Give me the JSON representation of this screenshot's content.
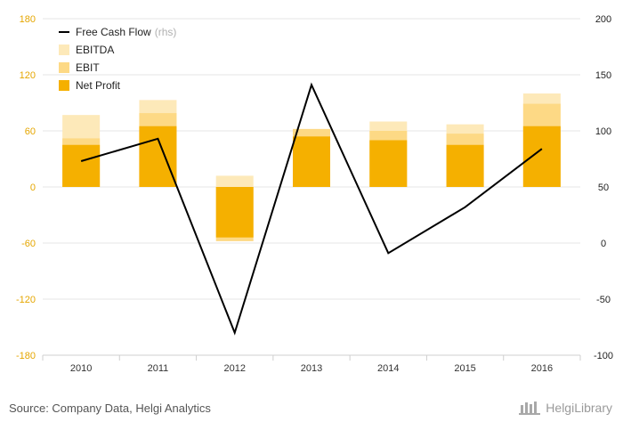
{
  "chart_data": {
    "type": "bar",
    "categories": [
      "2010",
      "2011",
      "2012",
      "2013",
      "2014",
      "2015",
      "2016"
    ],
    "series": [
      {
        "name": "EBITDA",
        "kind": "bar",
        "axis": "left",
        "color": "#fde9b9",
        "values": [
          77,
          93,
          12,
          62,
          70,
          67,
          100
        ]
      },
      {
        "name": "EBIT",
        "kind": "bar",
        "axis": "left",
        "color": "#fdd985",
        "values": [
          52,
          79,
          -58,
          62,
          60,
          57,
          89
        ]
      },
      {
        "name": "Net Profit",
        "kind": "bar",
        "axis": "left",
        "color": "#f5b000",
        "values": [
          45,
          65,
          -54,
          54,
          50,
          45,
          65
        ]
      },
      {
        "name": "Free Cash Flow",
        "kind": "line",
        "axis": "right",
        "color": "#000000",
        "values": [
          73,
          93,
          -80,
          141,
          -9,
          32,
          84
        ]
      }
    ],
    "left_axis": {
      "ylim": [
        -180,
        180
      ],
      "ticks": [
        "180",
        "120",
        "60",
        "0",
        "-60",
        "-120",
        "-180"
      ]
    },
    "right_axis": {
      "ylim": [
        -100,
        200
      ],
      "ticks": [
        "200",
        "150",
        "100",
        "50",
        "0",
        "-50",
        "-100"
      ]
    },
    "legend": [
      {
        "label": "Free Cash Flow",
        "suffix": "(rhs)",
        "symbol": "line",
        "color": "#000000"
      },
      {
        "label": "EBITDA",
        "suffix": "",
        "symbol": "square",
        "color": "#fde9b9"
      },
      {
        "label": "EBIT",
        "suffix": "",
        "symbol": "square",
        "color": "#fdd985"
      },
      {
        "label": "Net Profit",
        "suffix": "",
        "symbol": "square",
        "color": "#f5b000"
      }
    ],
    "legend_position": "top-left",
    "grid": true
  },
  "footer": {
    "source": "Source: Company Data, Helgi Analytics",
    "brand": "HelgiLibrary"
  }
}
